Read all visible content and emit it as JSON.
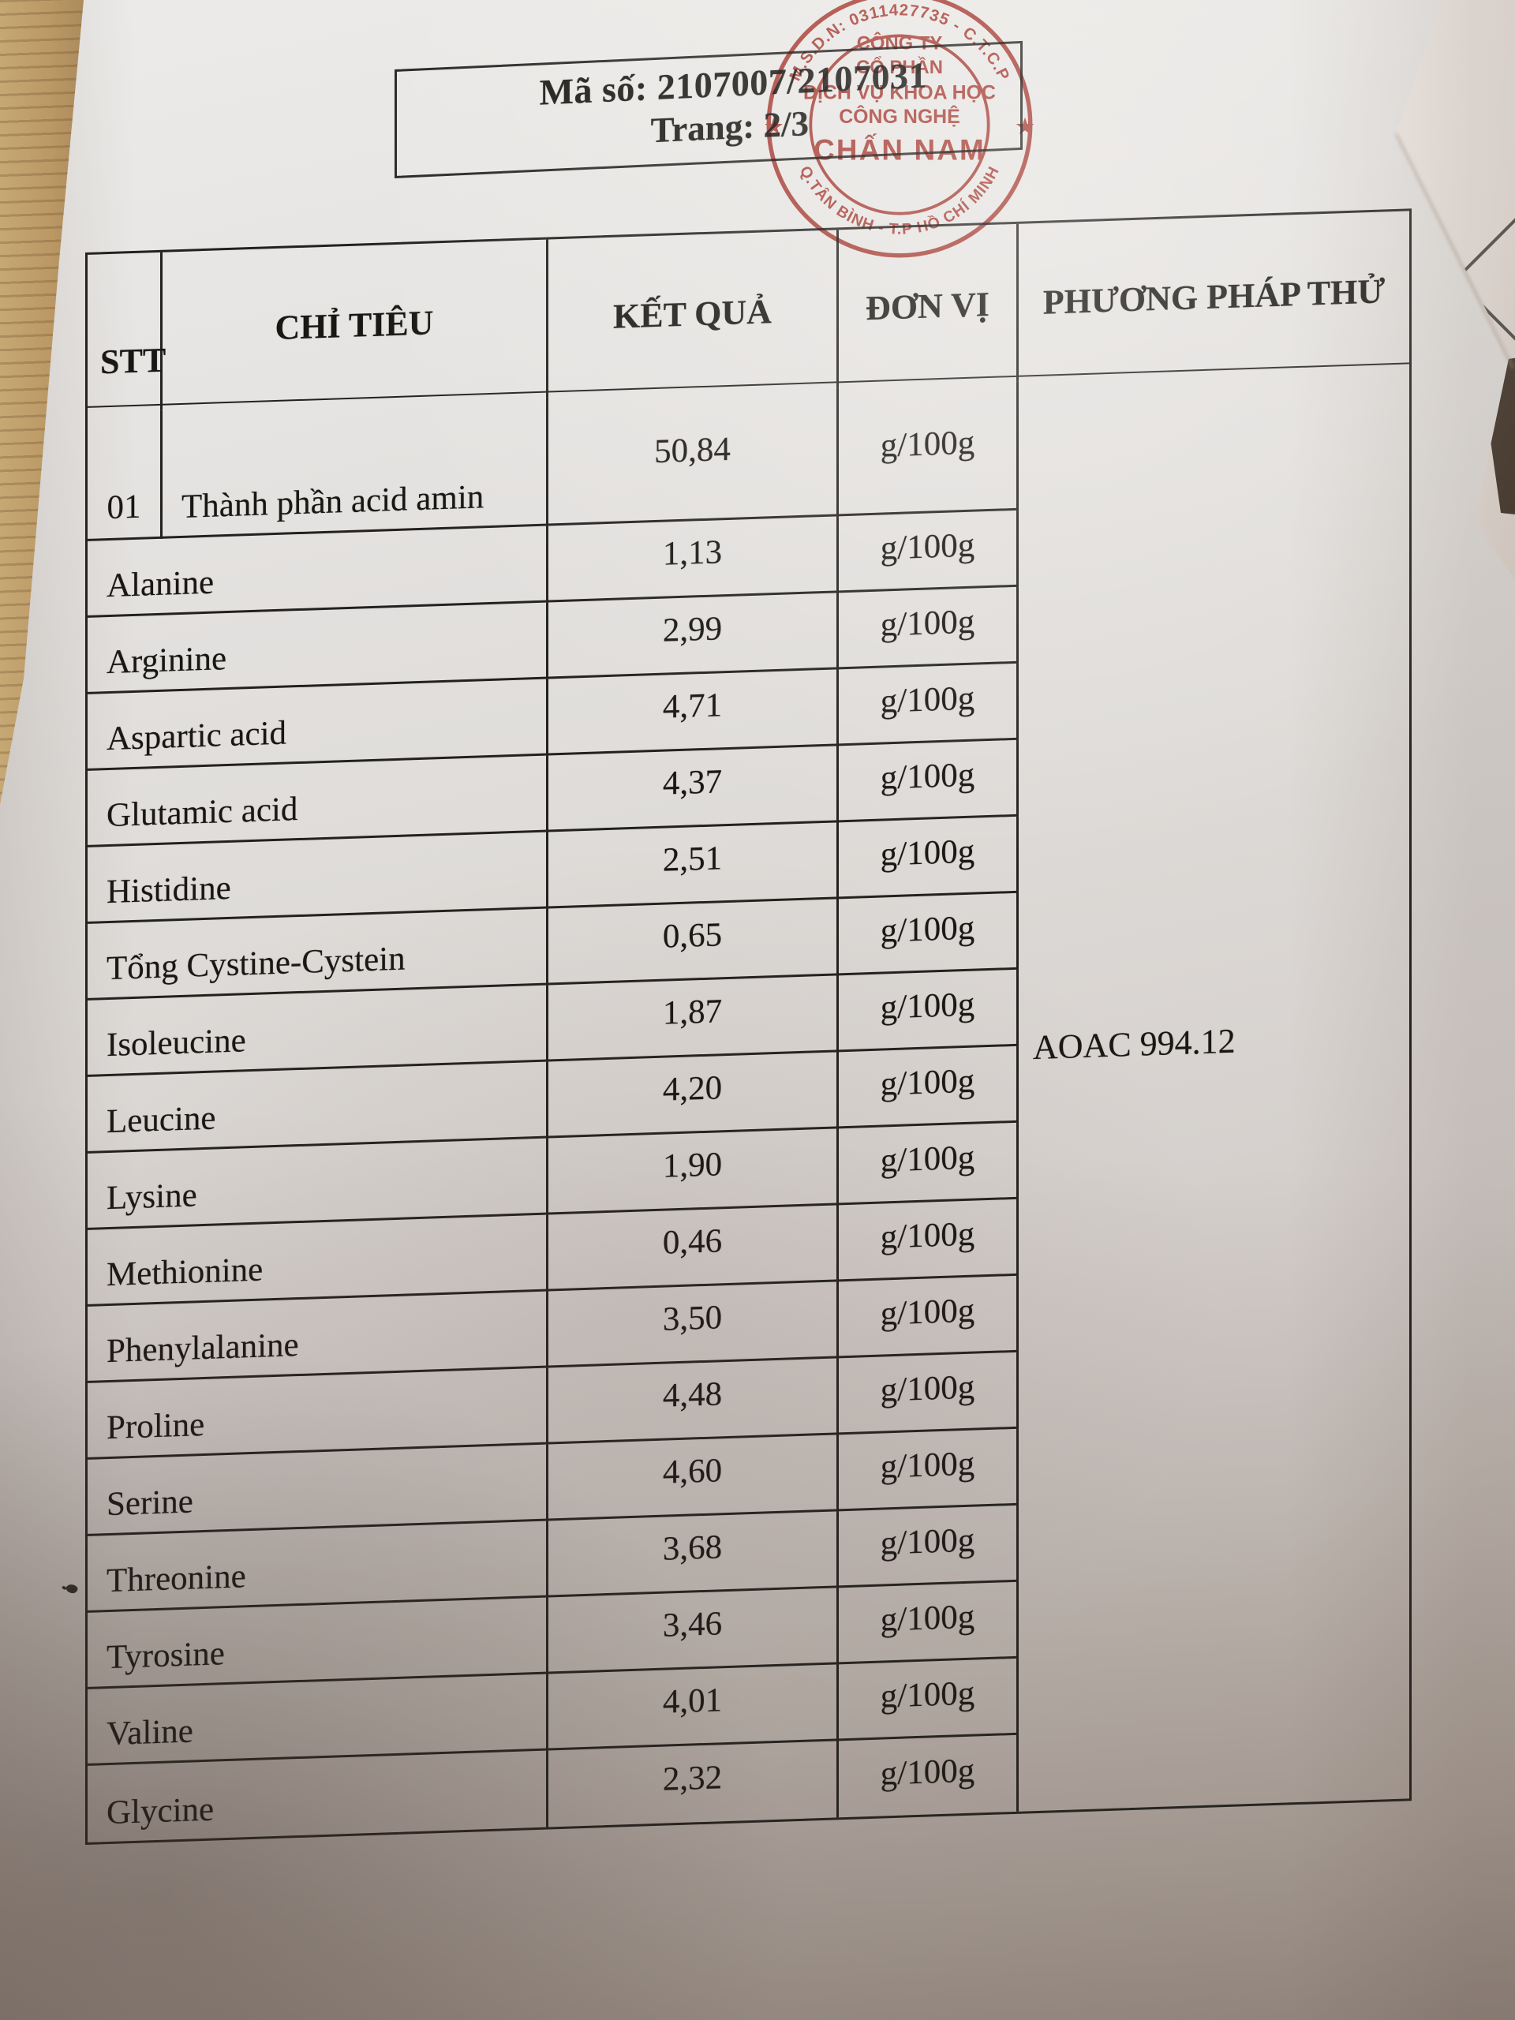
{
  "header_box": {
    "code": "Mã số: 2107007/2107031",
    "page": "Trang: 2/3"
  },
  "stamp": {
    "arc_top": "M.S.D.N: 0311427735 - C.T.C.P",
    "arc_bottom": "Q.TÂN BÌNH - T.P HỒ CHÍ MINH",
    "star_left": "★",
    "star_right": "★",
    "line1": "CÔNG TY",
    "line2": "CỔ PHẦN",
    "line3": "DỊCH VỤ KHOA HỌC",
    "line4": "CÔNG NGHỆ",
    "line5": "CHẤN NAM",
    "color": "#b2372e"
  },
  "table": {
    "headers": [
      "STT",
      "CHỈ TIÊU",
      "KẾT QUẢ",
      "ĐƠN VỊ",
      "PHƯƠNG PHÁP THỬ"
    ],
    "method": "AOAC 994.12",
    "rows": [
      {
        "stt": "01",
        "name": "Thành phần acid amin",
        "result": "50,84",
        "unit": "g/100g"
      },
      {
        "stt": "",
        "name": "Alanine",
        "result": "1,13",
        "unit": "g/100g"
      },
      {
        "stt": "",
        "name": "Arginine",
        "result": "2,99",
        "unit": "g/100g"
      },
      {
        "stt": "",
        "name": "Aspartic acid",
        "result": "4,71",
        "unit": "g/100g"
      },
      {
        "stt": "",
        "name": "Glutamic acid",
        "result": "4,37",
        "unit": "g/100g"
      },
      {
        "stt": "",
        "name": "Histidine",
        "result": "2,51",
        "unit": "g/100g"
      },
      {
        "stt": "",
        "name": "Tổng Cystine-Cystein",
        "result": "0,65",
        "unit": "g/100g"
      },
      {
        "stt": "",
        "name": "Isoleucine",
        "result": "1,87",
        "unit": "g/100g"
      },
      {
        "stt": "",
        "name": "Leucine",
        "result": "4,20",
        "unit": "g/100g"
      },
      {
        "stt": "",
        "name": "Lysine",
        "result": "1,90",
        "unit": "g/100g"
      },
      {
        "stt": "",
        "name": "Methionine",
        "result": "0,46",
        "unit": "g/100g"
      },
      {
        "stt": "",
        "name": "Phenylalanine",
        "result": "3,50",
        "unit": "g/100g"
      },
      {
        "stt": "",
        "name": "Proline",
        "result": "4,48",
        "unit": "g/100g"
      },
      {
        "stt": "",
        "name": "Serine",
        "result": "4,60",
        "unit": "g/100g"
      },
      {
        "stt": "",
        "name": "Threonine",
        "result": "3,68",
        "unit": "g/100g"
      },
      {
        "stt": "",
        "name": "Tyrosine",
        "result": "3,46",
        "unit": "g/100g"
      },
      {
        "stt": "",
        "name": "Valine",
        "result": "4,01",
        "unit": "g/100g"
      },
      {
        "stt": "",
        "name": "Glycine",
        "result": "2,32",
        "unit": "g/100g"
      }
    ]
  }
}
